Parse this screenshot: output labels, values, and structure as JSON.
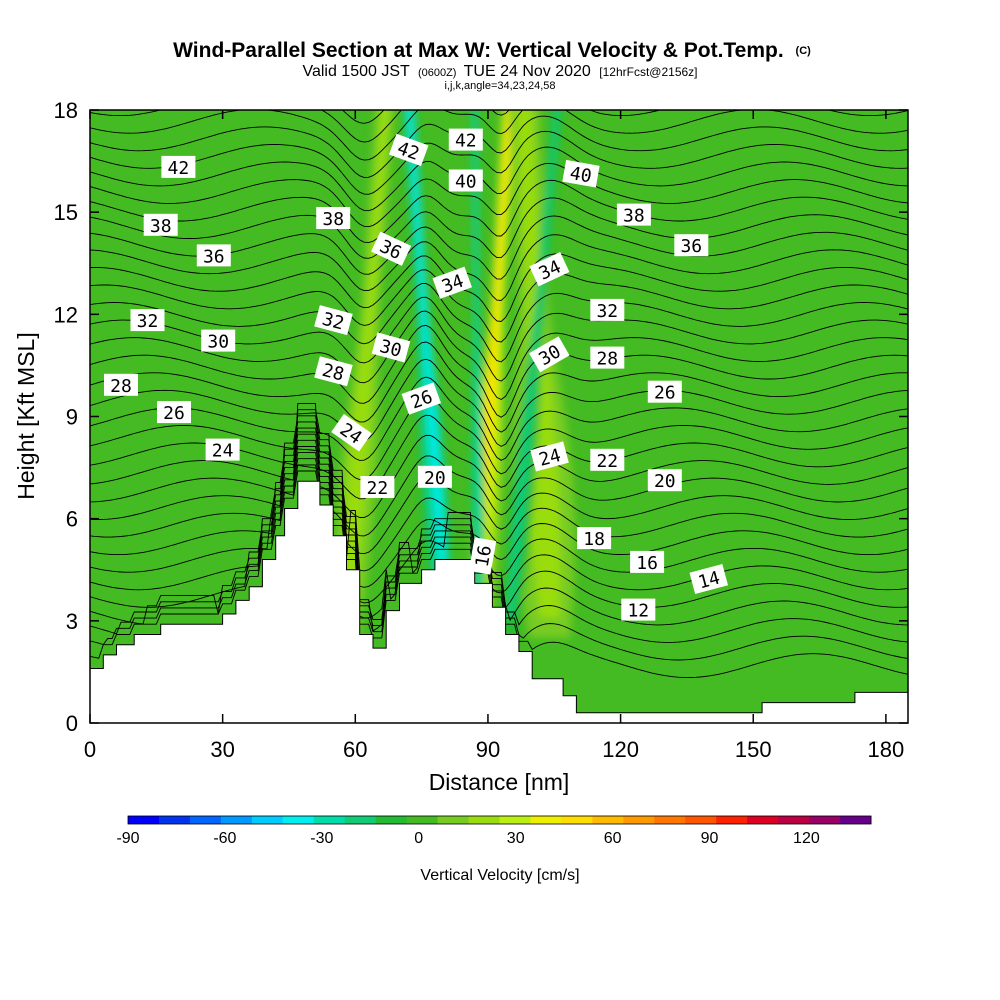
{
  "header": {
    "title": "Wind-Parallel Section at Max W: Vertical Velocity & Pot.Temp.",
    "title_unit": "(C)",
    "subtitle_a": "Valid 1500 JST",
    "subtitle_b": "(0600Z)",
    "subtitle_c": "TUE 24 Nov 2020",
    "subtitle_d": "[12hrFcst@2156z]",
    "subtitle_e": "i,j,k,angle=34,23,24,58"
  },
  "chart_data": {
    "type": "heatmap",
    "title": "Wind-Parallel Section at Max W: Vertical Velocity & Pot.Temp.",
    "xlabel": "Distance [nm]",
    "ylabel": "Height [Kft MSL]",
    "xlim": [
      0,
      185
    ],
    "ylim": [
      0,
      18
    ],
    "x_ticks": [
      "0",
      "30",
      "60",
      "90",
      "120",
      "150",
      "180"
    ],
    "y_ticks": [
      "0",
      "3",
      "6",
      "9",
      "12",
      "15",
      "18"
    ],
    "colorbar": {
      "label": "Vertical Velocity [cm/s]",
      "ticks": [
        "-90",
        "-60",
        "-30",
        "0",
        "30",
        "60",
        "90",
        "120"
      ],
      "range": [
        -90,
        140
      ],
      "step": 10,
      "colors": [
        "#0000ff",
        "#0033ee",
        "#0066ff",
        "#0099ff",
        "#00ccff",
        "#00eeee",
        "#00ddaa",
        "#11cc77",
        "#22bb33",
        "#44bb22",
        "#77cc22",
        "#99dd11",
        "#bbee11",
        "#eeee00",
        "#ffdd00",
        "#ffbb00",
        "#ff9900",
        "#ff7700",
        "#ff5500",
        "#ff2200",
        "#dd0022",
        "#bb0044",
        "#990066",
        "#660088"
      ]
    },
    "terrain_profile": [
      [
        0,
        1.6
      ],
      [
        3,
        1.6
      ],
      [
        3,
        2.0
      ],
      [
        6,
        2.0
      ],
      [
        6,
        2.3
      ],
      [
        10,
        2.3
      ],
      [
        10,
        2.6
      ],
      [
        16,
        2.6
      ],
      [
        16,
        2.9
      ],
      [
        30,
        2.9
      ],
      [
        30,
        3.2
      ],
      [
        33,
        3.2
      ],
      [
        33,
        3.6
      ],
      [
        36,
        3.6
      ],
      [
        36,
        4.0
      ],
      [
        39,
        4.0
      ],
      [
        39,
        4.8
      ],
      [
        42,
        4.8
      ],
      [
        42,
        5.5
      ],
      [
        44,
        5.5
      ],
      [
        44,
        6.3
      ],
      [
        47,
        6.3
      ],
      [
        47,
        7.1
      ],
      [
        52,
        7.1
      ],
      [
        52,
        6.4
      ],
      [
        55,
        6.4
      ],
      [
        55,
        5.5
      ],
      [
        58,
        5.5
      ],
      [
        58,
        4.5
      ],
      [
        61,
        4.5
      ],
      [
        61,
        2.6
      ],
      [
        64,
        2.6
      ],
      [
        64,
        2.2
      ],
      [
        67,
        2.2
      ],
      [
        67,
        3.3
      ],
      [
        70,
        3.3
      ],
      [
        70,
        4.1
      ],
      [
        75,
        4.1
      ],
      [
        75,
        4.5
      ],
      [
        78,
        4.5
      ],
      [
        78,
        4.8
      ],
      [
        87,
        4.8
      ],
      [
        87,
        4.1
      ],
      [
        91,
        4.1
      ],
      [
        91,
        3.4
      ],
      [
        94,
        3.4
      ],
      [
        94,
        2.6
      ],
      [
        97,
        2.6
      ],
      [
        97,
        2.1
      ],
      [
        100,
        2.1
      ],
      [
        100,
        1.3
      ],
      [
        107,
        1.3
      ],
      [
        107,
        0.8
      ],
      [
        110,
        0.8
      ],
      [
        110,
        0.3
      ],
      [
        152,
        0.3
      ],
      [
        152,
        0.6
      ],
      [
        173,
        0.6
      ],
      [
        173,
        0.9
      ],
      [
        185,
        0.9
      ]
    ],
    "updraft_cores": [
      {
        "x_bottom": 58,
        "x_top": 67,
        "w": 25,
        "width": 4.2
      },
      {
        "x_bottom": 88,
        "x_top": 95,
        "w": 50,
        "width": 3.5
      },
      {
        "x_bottom": 104,
        "x_top": 98,
        "w": 20,
        "width": 7
      }
    ],
    "downdraft_cores": [
      {
        "x_bottom": 80,
        "x_top": 72,
        "w": -45,
        "width": 3.2
      },
      {
        "x_bottom": 88,
        "x_top": 87,
        "w": -30,
        "width": 1.6
      },
      {
        "x_bottom": 95,
        "x_top": 106,
        "w": -25,
        "width": 2.5
      }
    ],
    "contour_series": {
      "name": "Pot.Temp.",
      "interval": 1,
      "min": 9,
      "max": 43
    },
    "contour_labels": [
      {
        "text": "42",
        "x": 20,
        "y": 16.3,
        "angle": 0
      },
      {
        "text": "38",
        "x": 16,
        "y": 14.6,
        "angle": 0
      },
      {
        "text": "36",
        "x": 28,
        "y": 13.7,
        "angle": 0
      },
      {
        "text": "32",
        "x": 13,
        "y": 11.8,
        "angle": 0
      },
      {
        "text": "30",
        "x": 29,
        "y": 11.2,
        "angle": 0
      },
      {
        "text": "28",
        "x": 7,
        "y": 9.9,
        "angle": 0
      },
      {
        "text": "26",
        "x": 19,
        "y": 9.1,
        "angle": 0
      },
      {
        "text": "24",
        "x": 30,
        "y": 8.0,
        "angle": 0
      },
      {
        "text": "38",
        "x": 55,
        "y": 14.8,
        "angle": 0
      },
      {
        "text": "32",
        "x": 55,
        "y": 11.8,
        "angle": 15
      },
      {
        "text": "28",
        "x": 55,
        "y": 10.3,
        "angle": 15
      },
      {
        "text": "24",
        "x": 59,
        "y": 8.5,
        "angle": 35
      },
      {
        "text": "22",
        "x": 65,
        "y": 6.9,
        "angle": 0
      },
      {
        "text": "20",
        "x": 78,
        "y": 7.2,
        "angle": 0
      },
      {
        "text": "42",
        "x": 72,
        "y": 16.8,
        "angle": 20
      },
      {
        "text": "36",
        "x": 68,
        "y": 13.9,
        "angle": 25
      },
      {
        "text": "30",
        "x": 68,
        "y": 11.0,
        "angle": 15
      },
      {
        "text": "26",
        "x": 75,
        "y": 9.5,
        "angle": -20
      },
      {
        "text": "34",
        "x": 82,
        "y": 12.9,
        "angle": -20
      },
      {
        "text": "42",
        "x": 85,
        "y": 17.1,
        "angle": 0
      },
      {
        "text": "40",
        "x": 85,
        "y": 15.9,
        "angle": 0
      },
      {
        "text": "16",
        "x": 89,
        "y": 4.9,
        "angle": -80
      },
      {
        "text": "34",
        "x": 104,
        "y": 13.3,
        "angle": -25
      },
      {
        "text": "30",
        "x": 104,
        "y": 10.8,
        "angle": -30
      },
      {
        "text": "24",
        "x": 104,
        "y": 7.8,
        "angle": -15
      },
      {
        "text": "40",
        "x": 111,
        "y": 16.1,
        "angle": 10
      },
      {
        "text": "38",
        "x": 123,
        "y": 14.9,
        "angle": 0
      },
      {
        "text": "32",
        "x": 117,
        "y": 12.1,
        "angle": 0
      },
      {
        "text": "28",
        "x": 117,
        "y": 10.7,
        "angle": 0
      },
      {
        "text": "22",
        "x": 117,
        "y": 7.7,
        "angle": 0
      },
      {
        "text": "18",
        "x": 114,
        "y": 5.4,
        "angle": 0
      },
      {
        "text": "36",
        "x": 136,
        "y": 14.0,
        "angle": 0
      },
      {
        "text": "26",
        "x": 130,
        "y": 9.7,
        "angle": 0
      },
      {
        "text": "20",
        "x": 130,
        "y": 7.1,
        "angle": 0
      },
      {
        "text": "16",
        "x": 126,
        "y": 4.7,
        "angle": 0
      },
      {
        "text": "14",
        "x": 140,
        "y": 4.2,
        "angle": -15
      },
      {
        "text": "12",
        "x": 124,
        "y": 3.3,
        "angle": 0
      }
    ]
  }
}
